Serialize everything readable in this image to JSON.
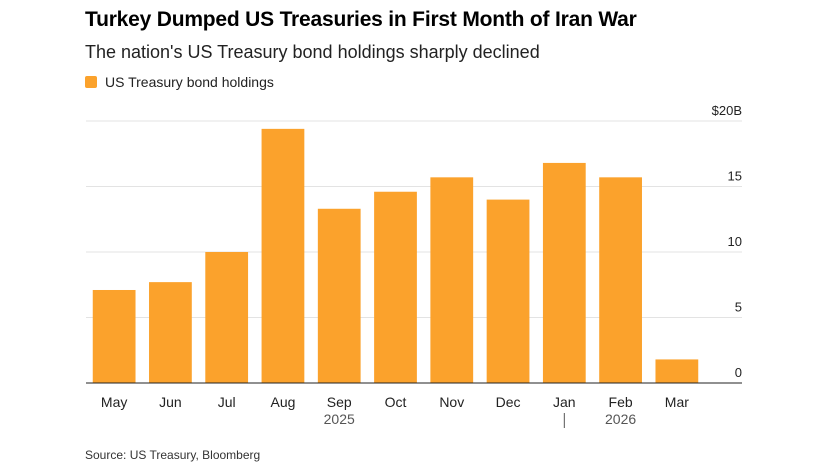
{
  "header": {
    "title": "Turkey Dumped US Treasuries in First Month of Iran War",
    "subtitle": "The nation's US Treasury bond holdings sharply declined"
  },
  "chart_data": {
    "type": "bar",
    "categories": [
      "May",
      "Jun",
      "Jul",
      "Aug",
      "Sep",
      "Oct",
      "Nov",
      "Dec",
      "Jan",
      "Feb",
      "Mar"
    ],
    "year_labels": [
      {
        "label": "2025",
        "category_index": 4
      },
      {
        "label": "2026",
        "category_index": 9
      }
    ],
    "year_divider_category_index": 8,
    "series": [
      {
        "name": "US Treasury bond holdings",
        "color": "#fba22c",
        "values": [
          7.1,
          7.7,
          10.0,
          19.4,
          13.3,
          14.6,
          15.7,
          14.0,
          16.8,
          15.7,
          1.8
        ]
      }
    ],
    "ylim": [
      0,
      20
    ],
    "yticks": [
      0,
      5,
      10,
      15,
      20
    ],
    "ytick_labels": [
      "0",
      "5",
      "10",
      "15",
      "$20B"
    ],
    "ylabel": "",
    "xlabel": "",
    "grid": true,
    "legend": "top-left",
    "y_axis_side": "right"
  },
  "footer": {
    "source": "Source: US Treasury, Bloomberg"
  }
}
